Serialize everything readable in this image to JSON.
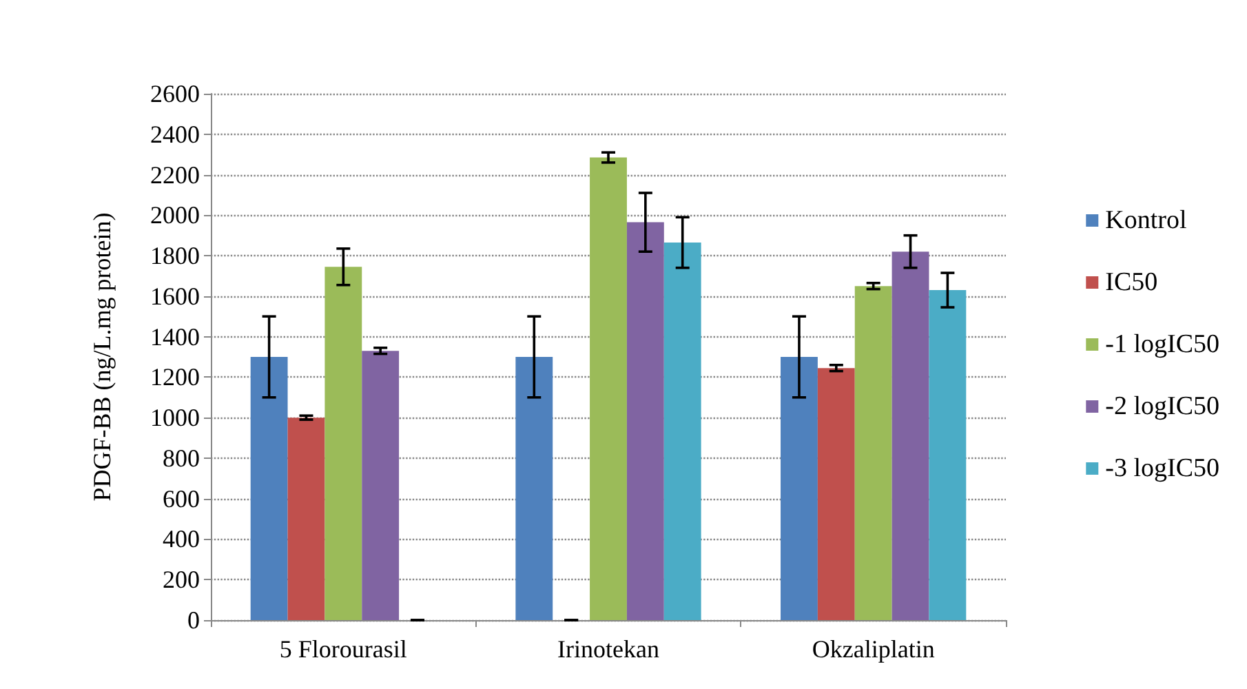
{
  "chart_data": {
    "type": "bar",
    "ylabel": "PDGF-BB (ng/L.mg protein)",
    "categories": [
      "5 Florourasil",
      "Irinotekan",
      "Okzaliplatin"
    ],
    "series": [
      {
        "name": "Kontrol",
        "color": "#4f81bd",
        "values": [
          1300,
          1300,
          1300
        ],
        "errors": [
          200,
          200,
          200
        ]
      },
      {
        "name": "IC50",
        "color": "#c0504d",
        "values": [
          1000,
          0,
          1245
        ],
        "errors": [
          10,
          0,
          15
        ]
      },
      {
        "name": "-1 logIC50",
        "color": "#9bbb59",
        "values": [
          1745,
          2285,
          1650
        ],
        "errors": [
          90,
          25,
          15
        ]
      },
      {
        "name": "-2 logIC50",
        "color": "#8064a2",
        "values": [
          1330,
          1965,
          1820
        ],
        "errors": [
          15,
          145,
          80
        ]
      },
      {
        "name": "-3 logIC50",
        "color": "#4bacc6",
        "values": [
          0,
          1865,
          1630
        ],
        "errors": [
          0,
          125,
          85
        ]
      }
    ],
    "ylim": [
      0,
      2600
    ],
    "yticks": [
      0,
      200,
      400,
      600,
      800,
      1000,
      1200,
      1400,
      1600,
      1800,
      2000,
      2200,
      2400,
      2600
    ],
    "grid": "y",
    "legend": "right"
  }
}
